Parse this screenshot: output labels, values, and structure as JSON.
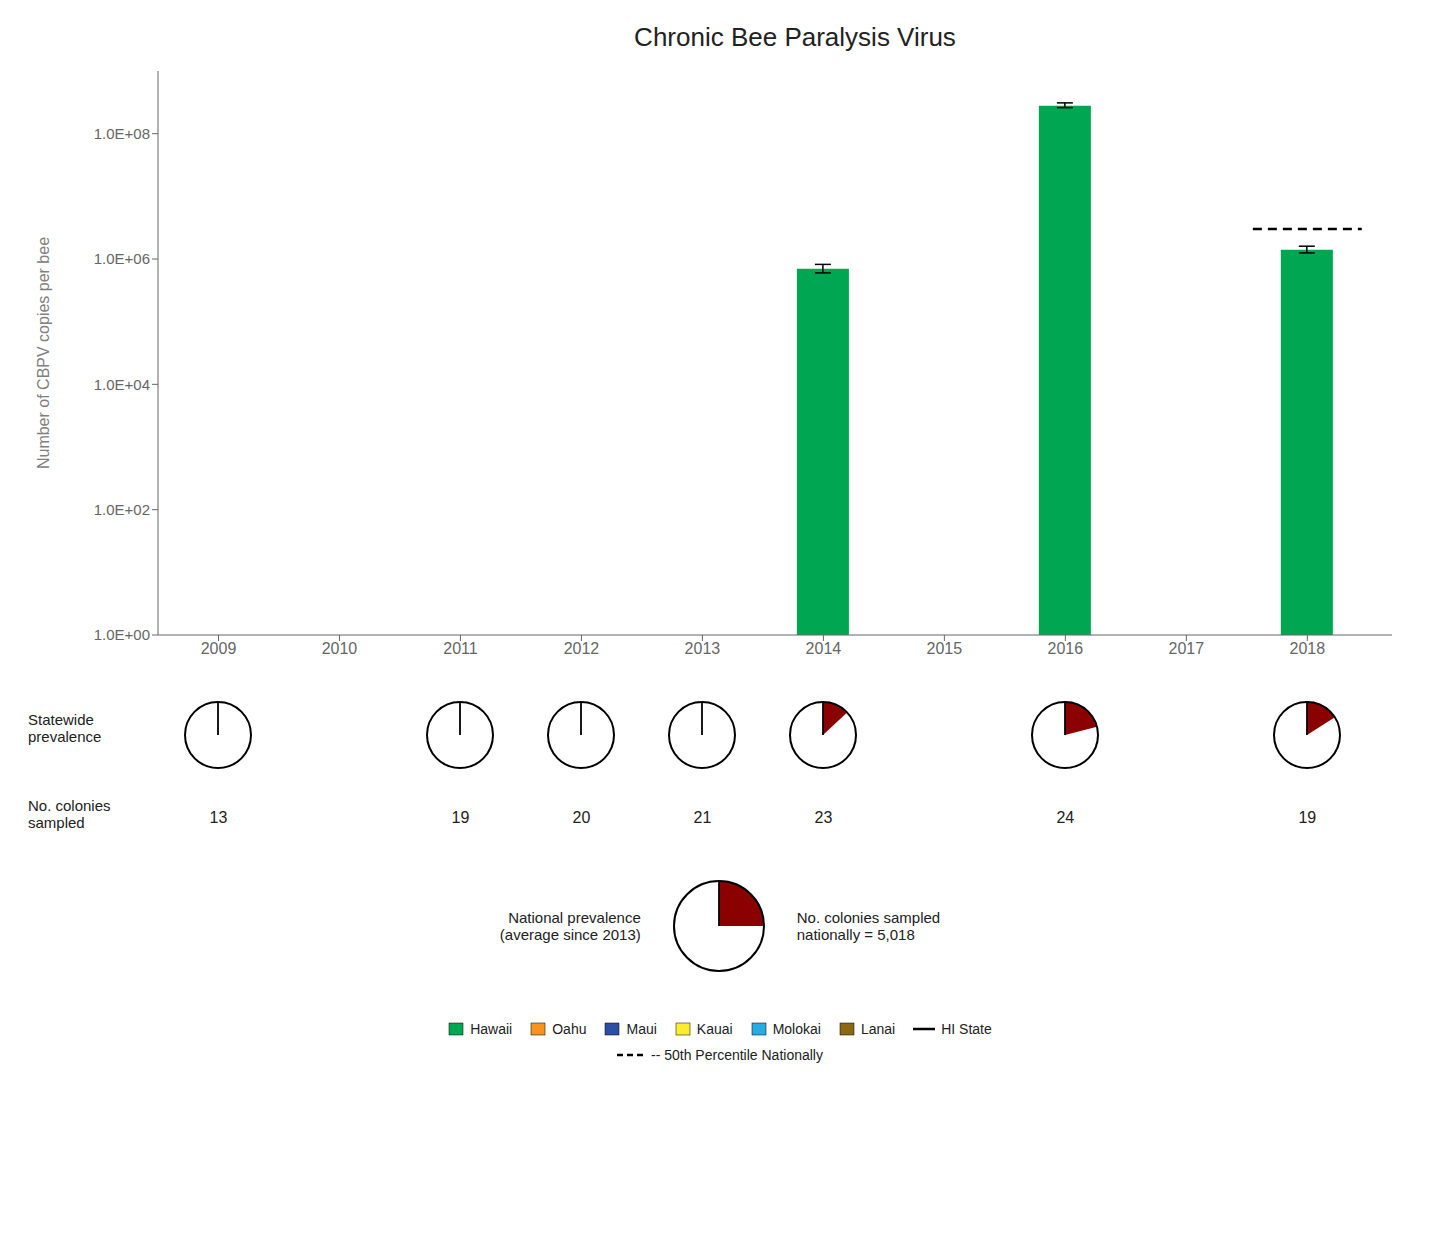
{
  "chart_data": {
    "type": "bar",
    "title": "Chronic Bee Paralysis Virus",
    "y_label": "Number of CBPV copies per bee",
    "x": [
      2009,
      2010,
      2011,
      2012,
      2013,
      2014,
      2015,
      2016,
      2017,
      2018
    ],
    "xlim": [
      2008.5,
      2018.7
    ],
    "xticks": [
      2009,
      2010,
      2011,
      2012,
      2013,
      2014,
      2015,
      2016,
      2017,
      2018
    ],
    "log": "y",
    "ylim": [
      1,
      1000000000
    ],
    "yticks": [
      {
        "value": 1,
        "label": "1.0E+00"
      },
      {
        "value": 100,
        "label": "1.0E+02"
      },
      {
        "value": 10000,
        "label": "1.0E+04"
      },
      {
        "value": 1000000,
        "label": "1.0E+06"
      },
      {
        "value": 100000000,
        "label": "1.0E+08"
      }
    ],
    "grid": false,
    "legend": "bottom",
    "series": [
      {
        "name": "Hawaii",
        "color": "#00A651",
        "type": "bar",
        "values": [
          null,
          null,
          null,
          null,
          null,
          700000,
          null,
          280000000,
          null,
          1400000
        ],
        "err_lo": [
          null,
          null,
          null,
          null,
          null,
          600000,
          null,
          260000000,
          null,
          1250000
        ],
        "err_hi": [
          null,
          null,
          null,
          null,
          null,
          820000,
          null,
          310000000,
          null,
          1600000
        ]
      },
      {
        "name": "Oahu",
        "color": "#F7941D",
        "type": "bar",
        "values": [
          null,
          null,
          null,
          null,
          null,
          null,
          null,
          null,
          null,
          null
        ]
      },
      {
        "name": "Maui",
        "color": "#2E4DA7",
        "type": "bar",
        "values": [
          null,
          null,
          null,
          null,
          null,
          null,
          null,
          null,
          null,
          null
        ]
      },
      {
        "name": "Kauai",
        "color": "#F9EC31",
        "type": "bar",
        "values": [
          null,
          null,
          null,
          null,
          null,
          null,
          null,
          null,
          null,
          null
        ]
      },
      {
        "name": "Molokai",
        "color": "#29ABE2",
        "type": "bar",
        "values": [
          null,
          null,
          null,
          null,
          null,
          null,
          null,
          null,
          null,
          null
        ]
      },
      {
        "name": "Lanai",
        "color": "#8B6914",
        "type": "bar",
        "values": [
          null,
          null,
          null,
          null,
          null,
          null,
          null,
          null,
          null,
          null
        ]
      },
      {
        "name": "HI State",
        "color": "#000000",
        "type": "line",
        "values": [
          null,
          null,
          null,
          null,
          null,
          null,
          null,
          null,
          null,
          null
        ]
      }
    ],
    "reference_line": {
      "value": 3000000,
      "label": "-- 50th Percentile Nationally",
      "color": "#000000",
      "line_style": "dashed"
    },
    "statewide_prevalence": {
      "label": "Statewide\nprevalence",
      "color": "#8B0000",
      "values": [
        0.0,
        null,
        0.0,
        0.0,
        0.0,
        0.13,
        null,
        0.21,
        null,
        0.16
      ]
    },
    "colonies_sampled": {
      "label": "No. colonies\nsampled",
      "values": [
        13,
        null,
        19,
        20,
        21,
        23,
        null,
        24,
        null,
        19
      ]
    },
    "national": {
      "label": "National prevalence\n(average since 2013)",
      "color": "#8B0000",
      "prevalence": 0.25,
      "colonies_label": "No. colonies sampled\nnationally =",
      "colonies": {
        "value": 5018,
        "label": "5,018"
      }
    }
  }
}
